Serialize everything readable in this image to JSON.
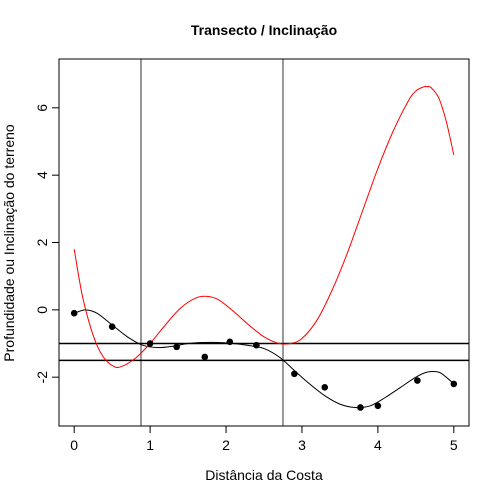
{
  "chart_data": {
    "type": "scatter",
    "title": "Transecto / Inclinação",
    "xlabel": "Distância da Costa",
    "ylabel": "Profundidade ou Inclinação do terreno",
    "xlim": [
      -0.2,
      5.2
    ],
    "ylim": [
      -3.45,
      7.45
    ],
    "x_ticks": [
      "0",
      "1",
      "2",
      "3",
      "4",
      "5"
    ],
    "y_ticks": [
      "-2",
      "0",
      "2",
      "4",
      "6"
    ],
    "x_tick_values": [
      0,
      1,
      2,
      3,
      4,
      5
    ],
    "y_tick_values": [
      -2,
      0,
      2,
      4,
      6
    ],
    "points": [
      {
        "x": 0.0,
        "y": -0.1
      },
      {
        "x": 0.5,
        "y": -0.5
      },
      {
        "x": 1.0,
        "y": -1.0
      },
      {
        "x": 1.35,
        "y": -1.1
      },
      {
        "x": 1.72,
        "y": -1.4
      },
      {
        "x": 2.05,
        "y": -0.95
      },
      {
        "x": 2.4,
        "y": -1.05
      },
      {
        "x": 2.9,
        "y": -1.9
      },
      {
        "x": 3.3,
        "y": -2.3
      },
      {
        "x": 3.77,
        "y": -2.9
      },
      {
        "x": 4.0,
        "y": -2.85
      },
      {
        "x": 4.52,
        "y": -2.1
      },
      {
        "x": 5.0,
        "y": -2.2
      }
    ],
    "series": [
      {
        "color": "#000000",
        "x": [
          0,
          0.15,
          0.3,
          0.5,
          0.7,
          0.9,
          1.1,
          1.3,
          1.5,
          1.7,
          1.9,
          2.1,
          2.3,
          2.5,
          2.7,
          2.9,
          3.1,
          3.3,
          3.5,
          3.7,
          3.9,
          4.1,
          4.3,
          4.5,
          4.65,
          4.8,
          4.9,
          5.0
        ],
        "y": [
          -0.1,
          0.0,
          -0.1,
          -0.45,
          -0.8,
          -1.05,
          -1.12,
          -1.08,
          -1.0,
          -0.97,
          -0.97,
          -1.0,
          -1.06,
          -1.15,
          -1.4,
          -1.8,
          -2.2,
          -2.55,
          -2.8,
          -2.9,
          -2.85,
          -2.6,
          -2.3,
          -2.0,
          -1.85,
          -1.85,
          -2.0,
          -2.2
        ]
      },
      {
        "color": "#ff0000",
        "x": [
          0,
          0.1,
          0.2,
          0.3,
          0.4,
          0.5,
          0.6,
          0.8,
          1.0,
          1.2,
          1.4,
          1.6,
          1.75,
          1.9,
          2.1,
          2.3,
          2.5,
          2.7,
          2.85,
          3.0,
          3.2,
          3.4,
          3.6,
          3.8,
          4.0,
          4.2,
          4.4,
          4.5,
          4.6,
          4.65,
          4.7,
          4.8,
          4.9,
          5.0
        ],
        "y": [
          1.8,
          0.5,
          -0.4,
          -1.05,
          -1.45,
          -1.65,
          -1.7,
          -1.45,
          -1.0,
          -0.45,
          0.05,
          0.35,
          0.4,
          0.3,
          -0.05,
          -0.45,
          -0.8,
          -1.0,
          -1.0,
          -0.85,
          -0.3,
          0.6,
          1.7,
          2.95,
          4.2,
          5.3,
          6.2,
          6.5,
          6.62,
          6.63,
          6.6,
          6.3,
          5.6,
          4.6
        ]
      }
    ],
    "hlines": [
      -1.0,
      -1.5
    ],
    "vlines": [
      0.88,
      2.75
    ],
    "colors": {
      "curve": "#000000",
      "slope": "#ff0000",
      "refline": "#000000",
      "vline": "#555555"
    }
  }
}
